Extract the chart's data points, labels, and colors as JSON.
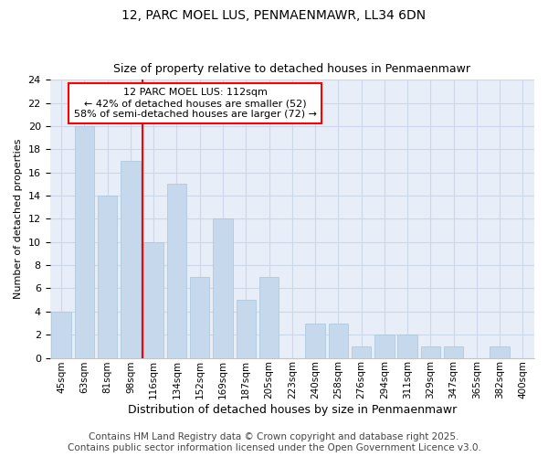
{
  "title1": "12, PARC MOEL LUS, PENMAENMAWR, LL34 6DN",
  "title2": "Size of property relative to detached houses in Penmaenmawr",
  "xlabel": "Distribution of detached houses by size in Penmaenmawr",
  "ylabel": "Number of detached properties",
  "categories": [
    "45sqm",
    "63sqm",
    "81sqm",
    "98sqm",
    "116sqm",
    "134sqm",
    "152sqm",
    "169sqm",
    "187sqm",
    "205sqm",
    "223sqm",
    "240sqm",
    "258sqm",
    "276sqm",
    "294sqm",
    "311sqm",
    "329sqm",
    "347sqm",
    "365sqm",
    "382sqm",
    "400sqm"
  ],
  "values": [
    4,
    20,
    14,
    17,
    10,
    15,
    7,
    12,
    5,
    7,
    0,
    3,
    3,
    1,
    2,
    2,
    1,
    1,
    0,
    1,
    0
  ],
  "bar_color": "#c5d8ec",
  "bar_edge_color": "#a8c4dc",
  "vline_x": 4.0,
  "vline_color": "red",
  "annotation_title": "12 PARC MOEL LUS: 112sqm",
  "annotation_line1": "← 42% of detached houses are smaller (52)",
  "annotation_line2": "58% of semi-detached houses are larger (72) →",
  "annotation_box_color": "white",
  "annotation_box_edge": "red",
  "ylim": [
    0,
    24
  ],
  "yticks": [
    0,
    2,
    4,
    6,
    8,
    10,
    12,
    14,
    16,
    18,
    20,
    22,
    24
  ],
  "grid_color": "#ccd8ea",
  "bg_color": "#e8eef8",
  "footer": "Contains HM Land Registry data © Crown copyright and database right 2025.\nContains public sector information licensed under the Open Government Licence v3.0.",
  "footer_fontsize": 7.5,
  "title1_fontsize": 10,
  "title2_fontsize": 9,
  "ylabel_fontsize": 8,
  "xlabel_fontsize": 9,
  "tick_fontsize": 8,
  "xtick_fontsize": 7.5,
  "ann_fontsize": 8
}
